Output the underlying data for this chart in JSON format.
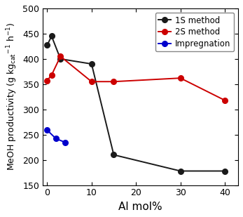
{
  "series": [
    {
      "label": "1S method",
      "color": "#1a1a1a",
      "x": [
        0,
        1,
        3,
        10,
        15,
        30,
        40
      ],
      "y": [
        427,
        445,
        400,
        390,
        210,
        178,
        178
      ]
    },
    {
      "label": "2S method",
      "color": "#cc0000",
      "x": [
        0,
        1,
        3,
        10,
        15,
        30,
        40
      ],
      "y": [
        357,
        368,
        405,
        355,
        355,
        362,
        318
      ]
    },
    {
      "label": "Impregnation",
      "color": "#0000cc",
      "x": [
        0,
        2,
        4
      ],
      "y": [
        259,
        242,
        235
      ]
    }
  ],
  "xlim": [
    -1,
    43
  ],
  "ylim": [
    150,
    500
  ],
  "xticks": [
    0,
    10,
    20,
    30,
    40
  ],
  "yticks": [
    150,
    200,
    250,
    300,
    350,
    400,
    450,
    500
  ],
  "xlabel": "Al mol%",
  "marker": "o",
  "markersize": 5.5,
  "linewidth": 1.4,
  "figsize": [
    3.47,
    3.09
  ],
  "dpi": 100,
  "tick_fontsize": 9,
  "label_fontsize": 11,
  "ylabel_fontsize": 9,
  "legend_fontsize": 8.5
}
